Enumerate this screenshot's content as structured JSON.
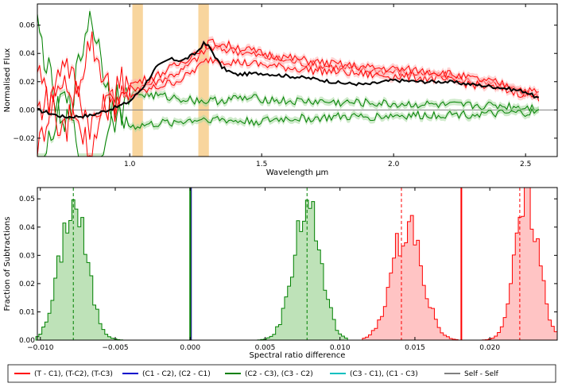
{
  "chart_data": [
    {
      "type": "line",
      "xlabel": "Wavelength μm",
      "ylabel": "Normalised Flux",
      "xlim": [
        0.65,
        2.62
      ],
      "ylim": [
        -0.033,
        0.075
      ],
      "xticks": [
        1.0,
        1.5,
        2.0,
        2.5
      ],
      "xtick_labels": [
        "1.0",
        "1.5",
        "2.0",
        "2.5"
      ],
      "yticks": [
        -0.02,
        0.0,
        0.02,
        0.04,
        0.06
      ],
      "ytick_labels": [
        "−0.02",
        "0.00",
        "0.02",
        "0.04",
        "0.06"
      ],
      "shaded_bands": [
        [
          1.01,
          1.05
        ],
        [
          1.26,
          1.3
        ]
      ],
      "band_color": "#f6c77c",
      "reference_line": {
        "y": 0.0,
        "color": "#808080"
      },
      "series": [
        {
          "color": "#000000",
          "x": [
            0.65,
            0.75,
            0.85,
            0.95,
            1.0,
            1.05,
            1.1,
            1.15,
            1.2,
            1.25,
            1.28,
            1.3,
            1.35,
            1.4,
            1.5,
            1.6,
            1.7,
            1.8,
            1.9,
            2.0,
            2.1,
            2.2,
            2.3,
            2.4,
            2.5,
            2.55
          ],
          "y": [
            0.0,
            -0.005,
            -0.004,
            0.002,
            0.006,
            0.016,
            0.03,
            0.036,
            0.035,
            0.04,
            0.047,
            0.045,
            0.03,
            0.025,
            0.026,
            0.024,
            0.022,
            0.019,
            0.018,
            0.021,
            0.02,
            0.02,
            0.018,
            0.016,
            0.013,
            0.008
          ]
        },
        {
          "color": "#ff0000",
          "band_color": "#ffb0b0",
          "x": [
            0.65,
            0.75,
            0.85,
            0.95,
            1.0,
            1.1,
            1.2,
            1.3,
            1.4,
            1.5,
            1.6,
            1.7,
            1.8,
            1.9,
            2.0,
            2.1,
            2.2,
            2.3,
            2.4,
            2.5,
            2.55
          ],
          "y": [
            -0.03,
            0.04,
            -0.01,
            0.01,
            0.015,
            0.02,
            0.028,
            0.044,
            0.042,
            0.038,
            0.035,
            0.032,
            0.03,
            0.028,
            0.027,
            0.026,
            0.024,
            0.02,
            0.017,
            0.012,
            0.01
          ]
        },
        {
          "color": "#ff0000",
          "band_color": "#ffb0b0",
          "x": [
            0.65,
            0.75,
            0.85,
            0.95,
            1.0,
            1.1,
            1.2,
            1.3,
            1.4,
            1.5,
            1.6,
            1.7,
            1.8,
            1.9,
            2.0,
            2.1,
            2.2,
            2.3,
            2.4,
            2.5,
            2.55
          ],
          "y": [
            0.03,
            -0.02,
            0.05,
            0.0,
            0.01,
            0.016,
            0.022,
            0.036,
            0.034,
            0.032,
            0.03,
            0.028,
            0.027,
            0.025,
            0.024,
            0.023,
            0.021,
            0.018,
            0.015,
            0.011,
            0.009
          ]
        },
        {
          "color": "#ff0000",
          "band_color": "#ffb0b0",
          "x": [
            0.65,
            0.75,
            0.85,
            0.95,
            1.0,
            1.1,
            1.2,
            1.3,
            1.4,
            1.5,
            1.6,
            1.7,
            1.8,
            1.9,
            2.0,
            2.1,
            2.2,
            2.3,
            2.4,
            2.5,
            2.55
          ],
          "y": [
            0.0,
            0.02,
            -0.03,
            0.02,
            0.018,
            0.024,
            0.034,
            0.048,
            0.045,
            0.04,
            0.037,
            0.034,
            0.032,
            0.03,
            0.029,
            0.028,
            0.026,
            0.022,
            0.019,
            0.014,
            0.012
          ]
        },
        {
          "color": "#008000",
          "band_color": "#a8d8a0",
          "x": [
            0.65,
            0.75,
            0.85,
            0.95,
            1.0,
            1.1,
            1.2,
            1.3,
            1.4,
            1.5,
            1.6,
            1.7,
            1.8,
            1.9,
            2.0,
            2.1,
            2.2,
            2.3,
            2.4,
            2.5,
            2.55
          ],
          "y": [
            0.06,
            -0.02,
            0.07,
            -0.01,
            0.012,
            0.01,
            0.008,
            0.006,
            0.008,
            0.008,
            0.006,
            0.006,
            0.005,
            0.005,
            0.004,
            0.004,
            0.003,
            0.003,
            0.003,
            0.002,
            0.002
          ]
        },
        {
          "color": "#008000",
          "band_color": "#a8d8a0",
          "x": [
            0.65,
            0.75,
            0.85,
            0.95,
            1.0,
            1.1,
            1.2,
            1.3,
            1.4,
            1.5,
            1.6,
            1.7,
            1.8,
            1.9,
            2.0,
            2.1,
            2.2,
            2.3,
            2.4,
            2.5,
            2.55
          ],
          "y": [
            -0.06,
            0.02,
            -0.07,
            0.01,
            -0.012,
            -0.01,
            -0.008,
            -0.006,
            -0.008,
            -0.008,
            -0.006,
            -0.006,
            -0.005,
            -0.005,
            -0.004,
            -0.004,
            -0.003,
            -0.003,
            -0.003,
            -0.002,
            -0.002
          ]
        }
      ]
    },
    {
      "type": "histogram",
      "xlabel": "Spectral ratio difference",
      "ylabel": "Fraction of Subtractions",
      "xlim": [
        -0.0102,
        0.0245
      ],
      "ylim": [
        0.0,
        0.054
      ],
      "xticks": [
        -0.01,
        -0.005,
        0.0,
        0.005,
        0.01,
        0.015,
        0.02
      ],
      "xtick_labels": [
        "−0.010",
        "−0.005",
        "0.000",
        "0.005",
        "0.010",
        "0.015",
        "0.020"
      ],
      "yticks": [
        0.0,
        0.01,
        0.02,
        0.03,
        0.04,
        0.05
      ],
      "ytick_labels": [
        "0.00",
        "0.01",
        "0.02",
        "0.03",
        "0.04",
        "0.05"
      ],
      "distributions": [
        {
          "color": "#008000",
          "fill": "#a8d8a0",
          "center": -0.0078,
          "sigma": 0.0009,
          "peak": 0.048,
          "median_line": -0.0078,
          "range": [
            -0.0103,
            -0.0045
          ]
        },
        {
          "color": "#008000",
          "fill": "#a8d8a0",
          "center": 0.0078,
          "sigma": 0.0009,
          "peak": 0.048,
          "median_line": 0.0078,
          "range": [
            0.0045,
            0.0105
          ]
        },
        {
          "color": "#ff0000",
          "fill": "#ffb0b0",
          "center": 0.0145,
          "sigma": 0.001,
          "peak": 0.041,
          "median_line": 0.0141,
          "range": [
            0.0115,
            0.0178
          ]
        },
        {
          "color": "#ff0000",
          "fill": "#ffb0b0",
          "center": 0.0225,
          "sigma": 0.0008,
          "peak": 0.049,
          "median_line": 0.022,
          "range": [
            0.0195,
            0.0245
          ]
        }
      ],
      "vertical_lines": [
        {
          "x": 0.0,
          "color": "#008000",
          "width": 2
        },
        {
          "x": 0.0,
          "color": "#000080",
          "width": 1
        },
        {
          "x": 0.0181,
          "color": "#ff0000",
          "width": 2
        }
      ]
    }
  ],
  "legend": {
    "placement": "bottom",
    "entries": [
      {
        "label": "(T - C1), (T-C2), (T-C3)",
        "color": "#ff0000"
      },
      {
        "label": "(C1 - C2), (C2 - C1)",
        "color": "#0000cc"
      },
      {
        "label": "(C2 - C3), (C3 - C2)",
        "color": "#008000"
      },
      {
        "label": "(C3 - C1), (C1 - C3)",
        "color": "#00bfbf"
      },
      {
        "label": "Self - Self",
        "color": "#808080"
      }
    ]
  }
}
